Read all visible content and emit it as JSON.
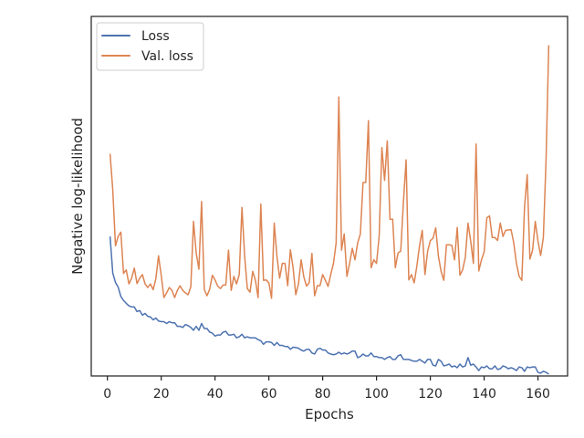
{
  "chart_data": {
    "type": "line",
    "xlabel": "Epochs",
    "ylabel": "Negative log-likelihood",
    "xlim": [
      -6,
      171
    ],
    "ylim": [
      0,
      100
    ],
    "y_tick_labels_shown": false,
    "x_ticks": [
      0,
      20,
      40,
      60,
      80,
      100,
      120,
      140,
      160
    ],
    "x_tick_labels": [
      "0",
      "20",
      "40",
      "60",
      "80",
      "100",
      "120",
      "140",
      "160"
    ],
    "grid": false,
    "legend": "top-left",
    "series": [
      {
        "name": "Loss",
        "color": "#4c72b0",
        "x": [
          1,
          2,
          3,
          4,
          5,
          6,
          7,
          8,
          9,
          10,
          11,
          12,
          13,
          14,
          15,
          16,
          17,
          18,
          19,
          20,
          21,
          22,
          23,
          24,
          25,
          26,
          27,
          28,
          29,
          30,
          31,
          32,
          33,
          34,
          35,
          36,
          37,
          38,
          39,
          40,
          41,
          42,
          43,
          44,
          45,
          46,
          47,
          48,
          49,
          50,
          51,
          52,
          53,
          54,
          55,
          56,
          57,
          58,
          59,
          60,
          61,
          62,
          63,
          64,
          65,
          66,
          67,
          68,
          69,
          70,
          71,
          72,
          73,
          74,
          75,
          76,
          77,
          78,
          79,
          80,
          81,
          82,
          83,
          84,
          85,
          86,
          87,
          88,
          89,
          90,
          91,
          92,
          93,
          94,
          95,
          96,
          97,
          98,
          99,
          100,
          101,
          102,
          103,
          104,
          105,
          106,
          107,
          108,
          109,
          110,
          111,
          112,
          113,
          114,
          115,
          116,
          117,
          118,
          119,
          120,
          121,
          122,
          123,
          124,
          125,
          126,
          127,
          128,
          129,
          130,
          131,
          132,
          133,
          134,
          135,
          136,
          137,
          138,
          139,
          140,
          141,
          142,
          143,
          144,
          145,
          146,
          147,
          148,
          149,
          150,
          151,
          152,
          153,
          154,
          155,
          156,
          157,
          158,
          159,
          160,
          161,
          162,
          163,
          164
        ],
        "y": [
          38.8,
          28.6,
          26.0,
          24.7,
          22.1,
          21.0,
          20.2,
          19.5,
          19.2,
          19.2,
          17.9,
          18.2,
          16.9,
          17.4,
          16.6,
          16.4,
          15.6,
          16.1,
          15.3,
          15.1,
          15.1,
          14.6,
          15.1,
          14.8,
          14.8,
          13.8,
          13.8,
          13.5,
          14.3,
          14.0,
          13.5,
          12.7,
          13.8,
          12.7,
          14.6,
          13.2,
          13.2,
          12.2,
          11.9,
          11.1,
          11.4,
          11.4,
          12.2,
          12.4,
          11.4,
          11.4,
          11.6,
          10.6,
          10.9,
          11.6,
          10.6,
          10.9,
          10.6,
          10.6,
          10.6,
          10.1,
          9.8,
          8.8,
          9.5,
          9.5,
          9.3,
          8.5,
          9.3,
          8.5,
          8.5,
          8.2,
          8.2,
          7.4,
          8.0,
          7.9,
          7.7,
          7.2,
          6.9,
          7.4,
          7.4,
          6.4,
          6.1,
          7.4,
          7.7,
          7.2,
          7.2,
          6.4,
          6.1,
          5.9,
          6.1,
          6.6,
          6.1,
          6.4,
          6.1,
          6.4,
          6.9,
          6.9,
          5.1,
          5.4,
          6.1,
          5.6,
          5.6,
          6.4,
          5.4,
          5.4,
          5.1,
          5.1,
          4.6,
          5.1,
          5.4,
          4.6,
          4.6,
          5.6,
          5.9,
          4.6,
          4.6,
          4.6,
          4.3,
          4.1,
          4.1,
          4.6,
          4.1,
          3.6,
          4.6,
          4.6,
          3.0,
          2.8,
          4.6,
          4.1,
          2.8,
          3.0,
          3.3,
          2.5,
          2.8,
          2.3,
          3.3,
          2.5,
          2.8,
          5.1,
          3.0,
          3.3,
          2.5,
          1.5,
          2.5,
          2.3,
          2.8,
          2.0,
          2.0,
          2.8,
          1.8,
          2.0,
          2.8,
          2.5,
          2.0,
          2.3,
          2.0,
          1.5,
          2.5,
          2.3,
          1.3,
          2.5,
          2.3,
          2.5,
          2.5,
          1.0,
          0.8,
          1.3,
          1.0,
          0.5
        ]
      },
      {
        "name": "Val. loss",
        "color": "#dd8452",
        "x": [
          1,
          2,
          3,
          4,
          5,
          6,
          7,
          8,
          9,
          10,
          11,
          12,
          13,
          14,
          15,
          16,
          17,
          18,
          19,
          20,
          21,
          22,
          23,
          24,
          25,
          26,
          27,
          28,
          29,
          30,
          31,
          32,
          33,
          34,
          35,
          36,
          37,
          38,
          39,
          40,
          41,
          42,
          43,
          44,
          45,
          46,
          47,
          48,
          49,
          50,
          51,
          52,
          53,
          54,
          55,
          56,
          57,
          58,
          59,
          60,
          61,
          62,
          63,
          64,
          65,
          66,
          67,
          68,
          69,
          70,
          71,
          72,
          73,
          74,
          75,
          76,
          77,
          78,
          79,
          80,
          81,
          82,
          83,
          84,
          85,
          86,
          87,
          88,
          89,
          90,
          91,
          92,
          93,
          94,
          95,
          96,
          97,
          98,
          99,
          100,
          101,
          102,
          103,
          104,
          105,
          106,
          107,
          108,
          109,
          110,
          111,
          112,
          113,
          114,
          115,
          116,
          117,
          118,
          119,
          120,
          121,
          122,
          123,
          124,
          125,
          126,
          127,
          128,
          129,
          130,
          131,
          132,
          133,
          134,
          135,
          136,
          137,
          138,
          139,
          140,
          141,
          142,
          143,
          144,
          145,
          146,
          147,
          148,
          149,
          150,
          151,
          152,
          153,
          154,
          155,
          156,
          157,
          158,
          159,
          160,
          161,
          162,
          163,
          164
        ],
        "y": [
          61.8,
          51.8,
          36.2,
          38.8,
          40.0,
          28.5,
          29.5,
          25.6,
          27.2,
          30.0,
          25.7,
          27.2,
          28.2,
          25.6,
          24.6,
          25.6,
          24.0,
          27.0,
          33.4,
          28.0,
          21.8,
          23.1,
          24.6,
          23.8,
          21.8,
          23.8,
          25.1,
          23.8,
          23.1,
          22.6,
          24.8,
          43.0,
          34.2,
          29.7,
          48.5,
          24.1,
          22.3,
          24.1,
          28.0,
          26.7,
          25.0,
          24.3,
          25.3,
          25.3,
          35.0,
          23.8,
          27.7,
          25.6,
          28.2,
          46.9,
          33.3,
          24.3,
          23.3,
          29.1,
          26.6,
          21.8,
          47.8,
          26.6,
          26.7,
          25.9,
          21.6,
          42.5,
          33.3,
          27.2,
          31.3,
          31.3,
          25.1,
          35.1,
          30.1,
          22.6,
          25.6,
          32.3,
          27.5,
          25.0,
          25.9,
          34.1,
          22.3,
          25.1,
          25.1,
          28.2,
          26.6,
          24.9,
          28.2,
          31.3,
          37.0,
          77.6,
          35.0,
          39.5,
          27.7,
          31.3,
          35.5,
          32.3,
          37.0,
          39.5,
          53.8,
          53.8,
          71.0,
          30.1,
          32.3,
          31.3,
          39.0,
          63.5,
          54.4,
          65.4,
          43.6,
          43.6,
          30.1,
          34.2,
          34.7,
          48.3,
          60.1,
          26.7,
          28.2,
          25.9,
          30.6,
          36.3,
          40.5,
          28.2,
          34.7,
          37.6,
          38.3,
          41.2,
          33.3,
          29.1,
          26.6,
          36.5,
          36.5,
          36.3,
          32.3,
          41.3,
          28.0,
          29.5,
          33.0,
          42.5,
          37.5,
          31.3,
          64.5,
          29.2,
          32.3,
          34.5,
          44.0,
          44.5,
          38.5,
          38.5,
          37.7,
          42.5,
          38.8,
          40.5,
          40.6,
          40.7,
          37.0,
          31.3,
          27.7,
          26.6,
          46.9,
          56.0,
          32.5,
          35.0,
          43.0,
          37.5,
          33.5,
          38.5,
          60.0,
          92.0
        ]
      }
    ]
  },
  "legend": {
    "items": [
      {
        "label": "Loss",
        "color": "#4c72b0"
      },
      {
        "label": "Val. loss",
        "color": "#dd8452"
      }
    ]
  }
}
